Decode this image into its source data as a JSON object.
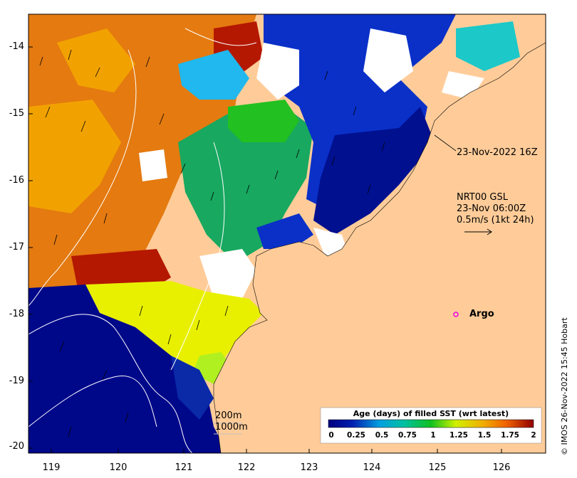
{
  "map": {
    "y_axis_ticks": [
      "-14",
      "-15",
      "-16",
      "-17",
      "-18",
      "-19",
      "-20"
    ],
    "x_axis_ticks": [
      "119",
      "120",
      "121",
      "122",
      "123",
      "124",
      "125",
      "126"
    ],
    "annotation_time": "23-Nov-2022 16Z",
    "current_label_1": "NRT00 GSL",
    "current_label_2": "23-Nov 06:00Z",
    "current_label_3": "0.5m/s (1kt 24h)",
    "argo_label": "Argo",
    "contour_200": "200m",
    "contour_1000": "1000m",
    "credit": "© IMOS 26-Nov-2022 15:45 Hobart",
    "land_color": "#ffcc99",
    "argo_marker_color": "#e800e8"
  },
  "legend": {
    "title": "Age (days) of filled SST (wrt latest)",
    "ticks": [
      "0",
      "0.25",
      "0.5",
      "0.75",
      "1",
      "1.25",
      "1.5",
      "1.75",
      "2"
    ],
    "colors": [
      "#00008f",
      "#0030c0",
      "#00a0e0",
      "#00c0a0",
      "#10c020",
      "#c8f000",
      "#f0d000",
      "#f08000",
      "#8f0000"
    ]
  }
}
